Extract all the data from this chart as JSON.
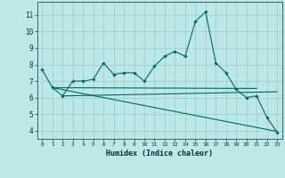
{
  "title": "",
  "xlabel": "Humidex (Indice chaleur)",
  "x_ticks": [
    0,
    1,
    2,
    3,
    4,
    5,
    6,
    7,
    8,
    9,
    10,
    11,
    12,
    13,
    14,
    15,
    16,
    17,
    18,
    19,
    20,
    21,
    22,
    23
  ],
  "ylim": [
    3.5,
    11.8
  ],
  "xlim": [
    -0.5,
    23.5
  ],
  "y_ticks": [
    4,
    5,
    6,
    7,
    8,
    9,
    10,
    11
  ],
  "bg_color": "#bde8e8",
  "grid_color": "#99cccc",
  "line_color": "#006666",
  "line1": [
    7.7,
    6.6,
    6.1,
    7.0,
    7.0,
    7.1,
    8.1,
    7.4,
    7.5,
    7.5,
    7.0,
    7.9,
    8.5,
    8.8,
    8.5,
    10.6,
    11.2,
    8.1,
    7.5,
    6.5,
    6.0,
    6.1,
    4.8,
    3.9
  ],
  "line2_x": [
    1,
    21
  ],
  "line2_y": [
    6.6,
    6.55
  ],
  "line3_x": [
    1,
    23
  ],
  "line3_y": [
    6.6,
    3.95
  ],
  "line4_x": [
    2,
    23
  ],
  "line4_y": [
    6.1,
    6.35
  ]
}
